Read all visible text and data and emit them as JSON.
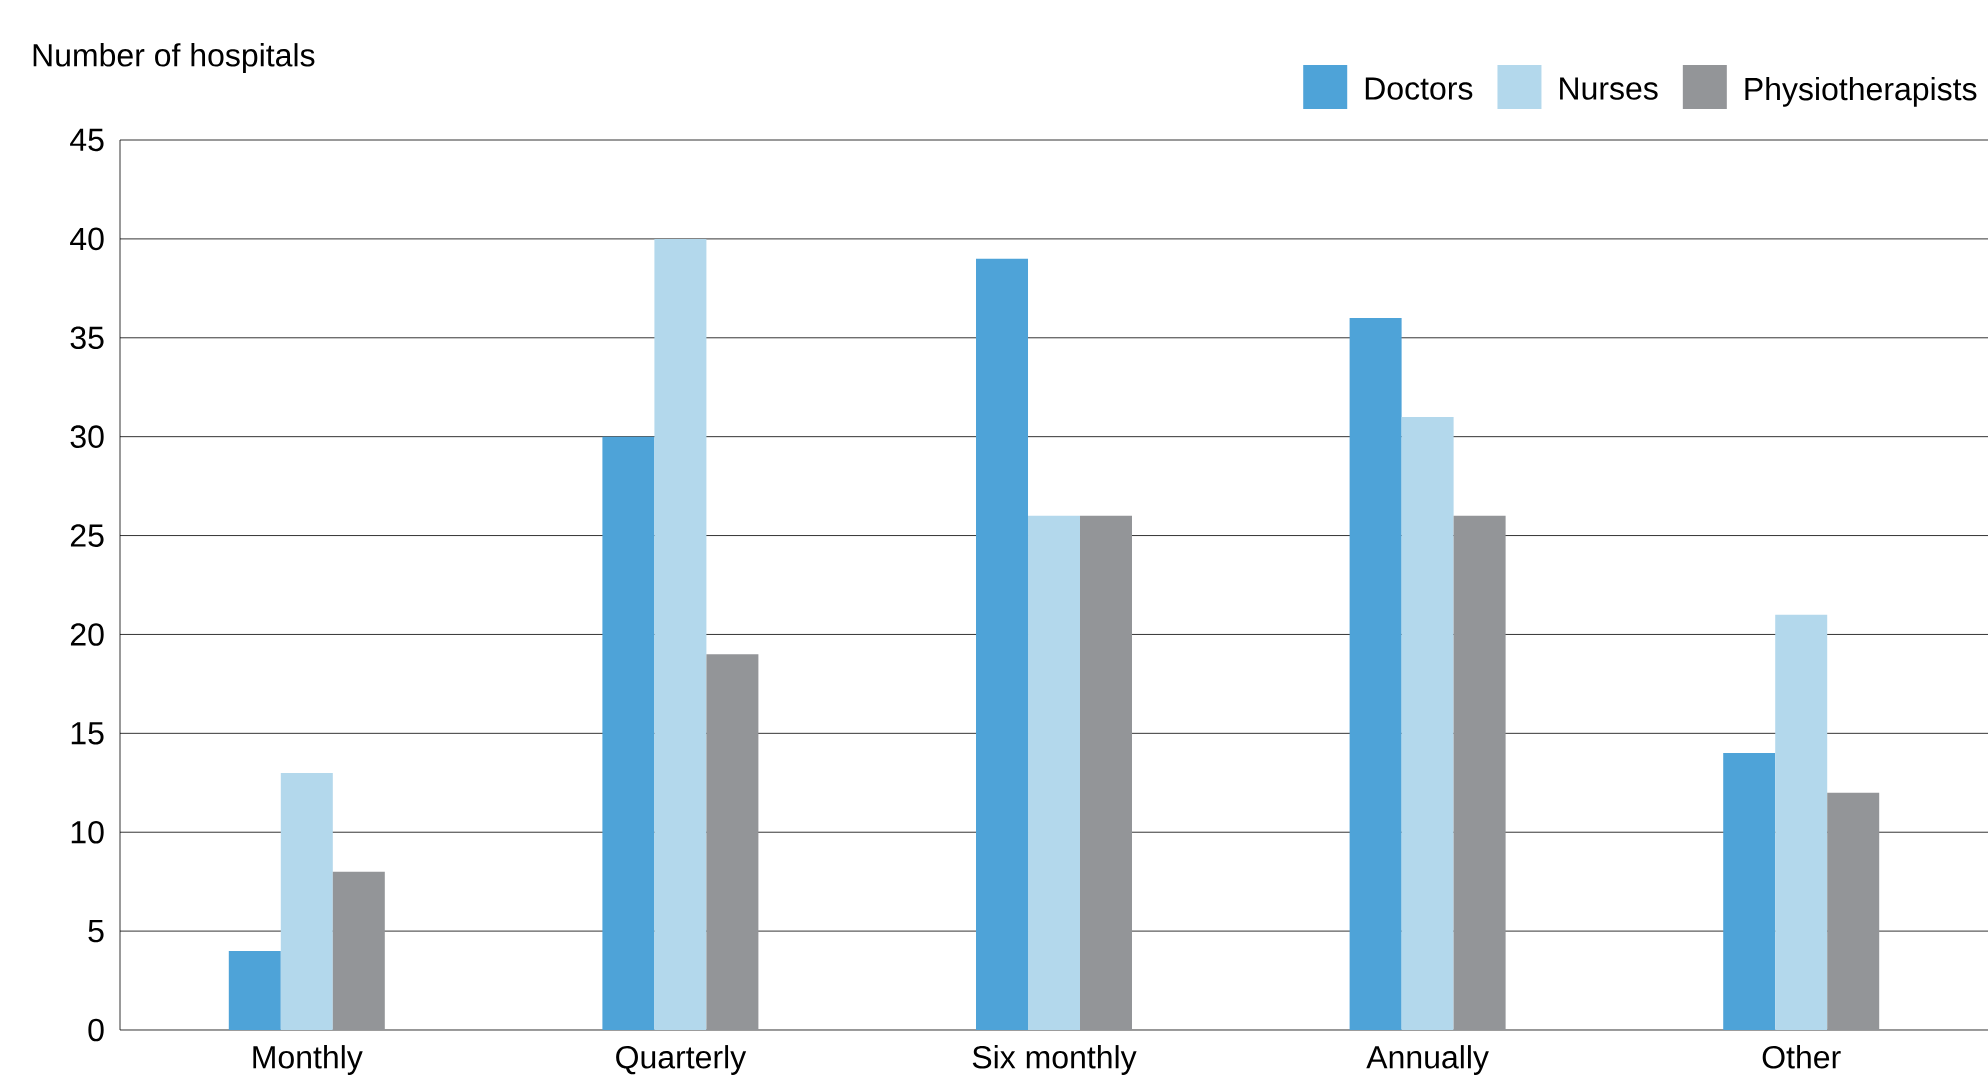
{
  "chart_data": {
    "type": "bar",
    "ylabel": "Number of hospitals",
    "categories": [
      "Monthly",
      "Quarterly",
      "Six monthly",
      "Annually",
      "Other"
    ],
    "series": [
      {
        "name": "Doctors",
        "color": "#4ea3d8",
        "values": [
          4,
          30,
          39,
          36,
          14
        ]
      },
      {
        "name": "Nurses",
        "color": "#b3d8ec",
        "values": [
          13,
          40,
          26,
          31,
          21
        ]
      },
      {
        "name": "Physiotherapists",
        "color": "#939598",
        "values": [
          8,
          19,
          26,
          26,
          12
        ]
      }
    ],
    "ylim": [
      0,
      45
    ],
    "yticks": [
      0,
      5,
      10,
      15,
      20,
      25,
      30,
      35,
      40,
      45
    ],
    "grid": "y",
    "legend": "top right"
  }
}
